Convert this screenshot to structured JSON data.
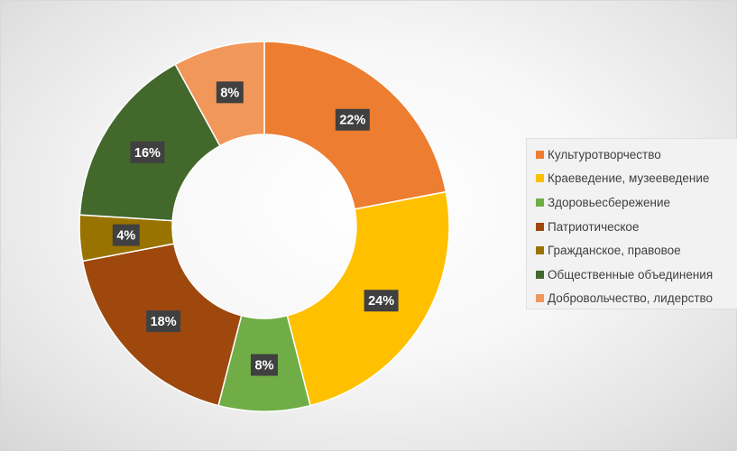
{
  "chart_data": {
    "type": "pie",
    "donut": true,
    "categories": [
      "Культуротворчество",
      "Краеведение, музееведение",
      "Здоровьесбережение",
      "Патриотическое",
      "Гражданское, правовое",
      "Общественные объединения",
      "Добровольчество, лидерство"
    ],
    "values": [
      22,
      24,
      8,
      18,
      4,
      16,
      8
    ],
    "labels": [
      "22%",
      "24%",
      "8%",
      "18%",
      "4%",
      "16%",
      "8%"
    ],
    "colors": [
      "#ED7D31",
      "#FFC000",
      "#70AD47",
      "#9E480E",
      "#997300",
      "#43682B",
      "#F1975A"
    ],
    "legend_position": "right"
  }
}
